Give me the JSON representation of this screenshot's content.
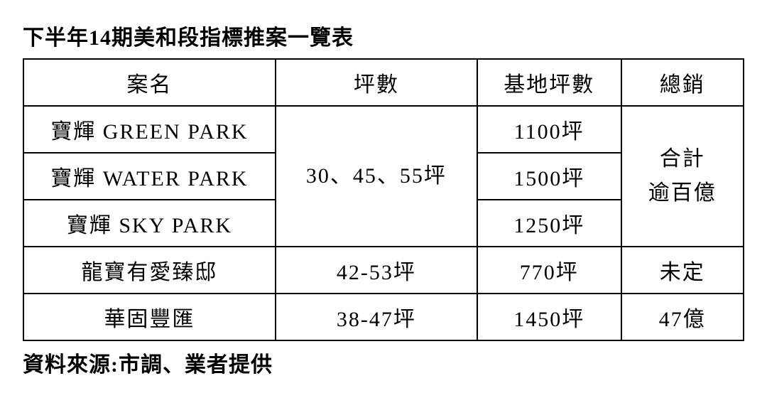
{
  "title": "下半年14期美和段指標推案一覽表",
  "table": {
    "headers": {
      "name": "案名",
      "ping": "坪數",
      "basePing": "基地坪數",
      "totalSales": "總銷"
    },
    "rows": [
      {
        "name": "寶輝 GREEN PARK",
        "pingMerged": "30、45、55坪",
        "basePing": "1100坪",
        "totalMerged": "合計\n逾百億"
      },
      {
        "name": "寶輝 WATER PARK",
        "basePing": "1500坪"
      },
      {
        "name": "寶輝 SKY PARK",
        "basePing": "1250坪"
      },
      {
        "name": "龍寶有愛臻邸",
        "ping": "42-53坪",
        "basePing": "770坪",
        "totalSales": "未定"
      },
      {
        "name": "華固豐匯",
        "ping": "38-47坪",
        "basePing": "1450坪",
        "totalSales": "47億"
      }
    ]
  },
  "source": "資料來源:市調、業者提供",
  "styling": {
    "fontFamily": "serif/MingLiU-style",
    "titleFontSize": 30,
    "cellFontSize": 30,
    "sourceFontSize": 30,
    "borderColor": "#000000",
    "borderWidth": 2,
    "backgroundColor": "#ffffff",
    "textColor": "#000000",
    "columnWidths": {
      "name": "35%",
      "ping": "28%",
      "basePing": "20%",
      "totalSales": "17%"
    }
  }
}
